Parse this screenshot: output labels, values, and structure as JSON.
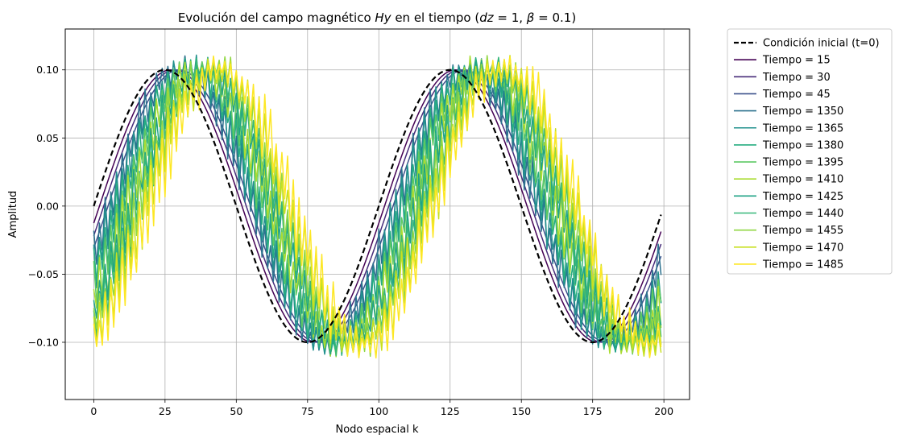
{
  "chart_data": {
    "type": "line",
    "title": "Evolución del campo magnético Hy en el tiempo  (dz = 1, β = 0.1)",
    "title_parts": {
      "prefix": "Evolución del campo magnético ",
      "var": "Hy",
      "middle": " en el tiempo  (",
      "dz": "dz",
      "dz_eq": " = 1, ",
      "beta": "β",
      "beta_eq": " = 0.1)"
    },
    "xlabel": "Nodo espacial k",
    "ylabel": "Amplitud",
    "xlim": [
      -10,
      209
    ],
    "ylim": [
      -0.142,
      0.13
    ],
    "xticks": [
      0,
      25,
      50,
      75,
      100,
      125,
      150,
      175,
      200
    ],
    "yticks": [
      -0.1,
      -0.05,
      0.0,
      0.05,
      0.1
    ],
    "ytick_labels": [
      "−0.10",
      "−0.05",
      "0.00",
      "0.05",
      "0.10"
    ],
    "grid": true,
    "legend_position": "outside-right-top",
    "wave": {
      "amplitude": 0.1,
      "wavelength": 100,
      "n_points": 200
    },
    "series": [
      {
        "name": "Condición inicial (t=0)",
        "color": "#000000",
        "style": "dashed",
        "shift": 0,
        "noise": 0
      },
      {
        "name": "Tiempo = 15",
        "color": "#440154",
        "style": "solid",
        "shift": 2,
        "noise": 0
      },
      {
        "name": "Tiempo = 30",
        "color": "#472c7a",
        "style": "solid",
        "shift": 3.5,
        "noise": 0
      },
      {
        "name": "Tiempo = 45",
        "color": "#3b518b",
        "style": "solid",
        "shift": 5,
        "noise": 0
      },
      {
        "name": "Tiempo = 1350",
        "color": "#2c718e",
        "style": "solid",
        "shift": 6,
        "noise": 0.012
      },
      {
        "name": "Tiempo = 1365",
        "color": "#21908d",
        "style": "solid",
        "shift": 7.5,
        "noise": 0.012
      },
      {
        "name": "Tiempo = 1380",
        "color": "#27ad81",
        "style": "solid",
        "shift": 9,
        "noise": 0.012
      },
      {
        "name": "Tiempo = 1395",
        "color": "#5cc863",
        "style": "solid",
        "shift": 10.5,
        "noise": 0.012
      },
      {
        "name": "Tiempo = 1410",
        "color": "#aadc32",
        "style": "solid",
        "shift": 12,
        "noise": 0.013
      },
      {
        "name": "Tiempo = 1425",
        "color": "#20a386",
        "style": "solid",
        "shift": 13.5,
        "noise": 0.013
      },
      {
        "name": "Tiempo = 1440",
        "color": "#35b779",
        "style": "solid",
        "shift": 15,
        "noise": 0.013
      },
      {
        "name": "Tiempo = 1455",
        "color": "#90d743",
        "style": "solid",
        "shift": 16.5,
        "noise": 0.014
      },
      {
        "name": "Tiempo = 1470",
        "color": "#c8e020",
        "style": "solid",
        "shift": 18,
        "noise": 0.014
      },
      {
        "name": "Tiempo = 1485",
        "color": "#fde725",
        "style": "solid",
        "shift": 19.5,
        "noise": 0.015
      }
    ]
  }
}
